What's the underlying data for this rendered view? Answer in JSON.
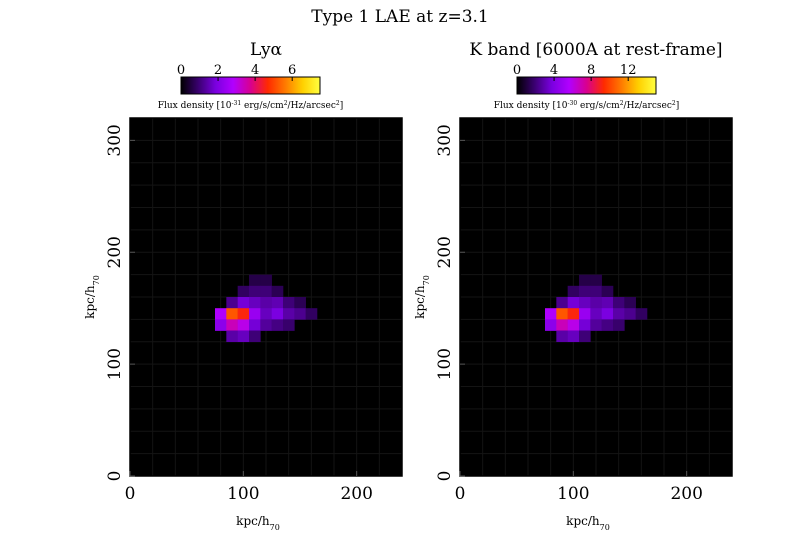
{
  "figure": {
    "title": "Type 1 LAE at z=3.1"
  },
  "colors": {
    "background": "#000000",
    "colormap": [
      "#000000",
      "#3a0070",
      "#7a00e0",
      "#b100ff",
      "#d80090",
      "#ff2a00",
      "#ff7a00",
      "#ffd000",
      "#ffff40"
    ]
  },
  "chart_data": [
    {
      "type": "heatmap",
      "title": "Lyα",
      "xlabel": "kpc/h",
      "xlabel_sub": "70",
      "ylabel": "kpc/h",
      "ylabel_sub": "70",
      "xlim": [
        0,
        240
      ],
      "ylim": [
        0,
        320
      ],
      "xticks": [
        0,
        100,
        200
      ],
      "yticks": [
        0,
        100,
        200,
        300
      ],
      "colorbar": {
        "ticks": [
          "0",
          "2",
          "4",
          "6"
        ],
        "vmin": 0,
        "vmax": 7.5,
        "label_prefix": "Flux density [10",
        "label_exp": "-31",
        "label_mid": " erg/s/cm",
        "label_exp2": "2",
        "label_suffix": "/Hz/arcsec",
        "label_exp3": "2",
        "label_end": "]"
      },
      "pixel_size": 10,
      "pixels": [
        {
          "x": 110,
          "y": 175,
          "v": 0.6
        },
        {
          "x": 120,
          "y": 175,
          "v": 0.6
        },
        {
          "x": 100,
          "y": 165,
          "v": 0.8
        },
        {
          "x": 110,
          "y": 165,
          "v": 1.0
        },
        {
          "x": 120,
          "y": 165,
          "v": 1.0
        },
        {
          "x": 130,
          "y": 165,
          "v": 0.7
        },
        {
          "x": 90,
          "y": 155,
          "v": 1.2
        },
        {
          "x": 100,
          "y": 155,
          "v": 1.8
        },
        {
          "x": 110,
          "y": 155,
          "v": 1.6
        },
        {
          "x": 120,
          "y": 155,
          "v": 1.4
        },
        {
          "x": 130,
          "y": 155,
          "v": 1.5
        },
        {
          "x": 140,
          "y": 155,
          "v": 1.0
        },
        {
          "x": 150,
          "y": 155,
          "v": 0.7
        },
        {
          "x": 80,
          "y": 145,
          "v": 2.8
        },
        {
          "x": 90,
          "y": 145,
          "v": 5.2
        },
        {
          "x": 100,
          "y": 145,
          "v": 4.6
        },
        {
          "x": 110,
          "y": 145,
          "v": 2.4
        },
        {
          "x": 120,
          "y": 145,
          "v": 1.6
        },
        {
          "x": 130,
          "y": 145,
          "v": 1.9
        },
        {
          "x": 140,
          "y": 145,
          "v": 1.4
        },
        {
          "x": 150,
          "y": 145,
          "v": 1.2
        },
        {
          "x": 160,
          "y": 145,
          "v": 0.8
        },
        {
          "x": 80,
          "y": 135,
          "v": 2.2
        },
        {
          "x": 90,
          "y": 135,
          "v": 3.4
        },
        {
          "x": 100,
          "y": 135,
          "v": 3.0
        },
        {
          "x": 110,
          "y": 135,
          "v": 1.8
        },
        {
          "x": 120,
          "y": 135,
          "v": 1.3
        },
        {
          "x": 130,
          "y": 135,
          "v": 1.1
        },
        {
          "x": 140,
          "y": 135,
          "v": 0.9
        },
        {
          "x": 90,
          "y": 125,
          "v": 1.4
        },
        {
          "x": 100,
          "y": 125,
          "v": 1.6
        },
        {
          "x": 110,
          "y": 125,
          "v": 1.0
        }
      ]
    },
    {
      "type": "heatmap",
      "title": "K band [6000A at rest-frame]",
      "xlabel": "kpc/h",
      "xlabel_sub": "70",
      "ylabel": "kpc/h",
      "ylabel_sub": "70",
      "xlim": [
        0,
        240
      ],
      "ylim": [
        0,
        320
      ],
      "xticks": [
        0,
        100,
        200
      ],
      "yticks": [
        0,
        100,
        200,
        300
      ],
      "colorbar": {
        "ticks": [
          "0",
          "4",
          "8",
          "12"
        ],
        "vmin": 0,
        "vmax": 15,
        "label_prefix": "Flux density [10",
        "label_exp": "-30",
        "label_mid": " erg/s/cm",
        "label_exp2": "2",
        "label_suffix": "/Hz/arcsec",
        "label_exp3": "2",
        "label_end": "]"
      },
      "pixel_size": 10,
      "pixels": [
        {
          "x": 110,
          "y": 175,
          "v": 1.2
        },
        {
          "x": 120,
          "y": 175,
          "v": 1.2
        },
        {
          "x": 100,
          "y": 165,
          "v": 1.6
        },
        {
          "x": 110,
          "y": 165,
          "v": 2.0
        },
        {
          "x": 120,
          "y": 165,
          "v": 2.0
        },
        {
          "x": 130,
          "y": 165,
          "v": 1.4
        },
        {
          "x": 90,
          "y": 155,
          "v": 2.4
        },
        {
          "x": 100,
          "y": 155,
          "v": 3.6
        },
        {
          "x": 110,
          "y": 155,
          "v": 3.2
        },
        {
          "x": 120,
          "y": 155,
          "v": 2.8
        },
        {
          "x": 130,
          "y": 155,
          "v": 3.0
        },
        {
          "x": 140,
          "y": 155,
          "v": 2.0
        },
        {
          "x": 150,
          "y": 155,
          "v": 1.4
        },
        {
          "x": 80,
          "y": 145,
          "v": 5.6
        },
        {
          "x": 90,
          "y": 145,
          "v": 10.4
        },
        {
          "x": 100,
          "y": 145,
          "v": 9.2
        },
        {
          "x": 110,
          "y": 145,
          "v": 4.8
        },
        {
          "x": 120,
          "y": 145,
          "v": 3.2
        },
        {
          "x": 130,
          "y": 145,
          "v": 3.8
        },
        {
          "x": 140,
          "y": 145,
          "v": 2.8
        },
        {
          "x": 150,
          "y": 145,
          "v": 2.4
        },
        {
          "x": 160,
          "y": 145,
          "v": 1.6
        },
        {
          "x": 80,
          "y": 135,
          "v": 4.4
        },
        {
          "x": 90,
          "y": 135,
          "v": 6.8
        },
        {
          "x": 100,
          "y": 135,
          "v": 6.0
        },
        {
          "x": 110,
          "y": 135,
          "v": 3.6
        },
        {
          "x": 120,
          "y": 135,
          "v": 2.6
        },
        {
          "x": 130,
          "y": 135,
          "v": 2.2
        },
        {
          "x": 140,
          "y": 135,
          "v": 1.8
        },
        {
          "x": 90,
          "y": 125,
          "v": 2.8
        },
        {
          "x": 100,
          "y": 125,
          "v": 3.2
        },
        {
          "x": 110,
          "y": 125,
          "v": 2.0
        }
      ]
    }
  ]
}
